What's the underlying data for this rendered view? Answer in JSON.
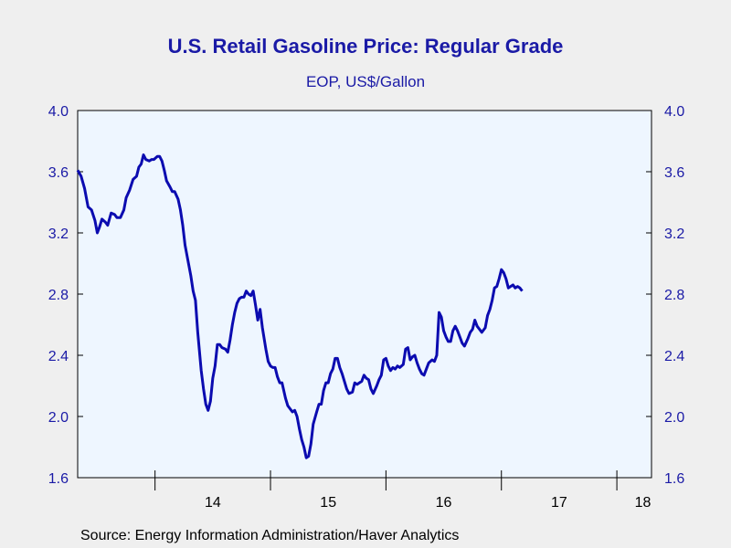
{
  "chart_data": {
    "type": "line",
    "title": "U.S. Retail Gasoline Price: Regular Grade",
    "subtitle": "EOP, US$/Gallon",
    "source": "Source:  Energy Information Administration/Haver Analytics",
    "ylim": [
      1.6,
      4.0
    ],
    "yticks": [
      "1.6",
      "2.0",
      "2.4",
      "2.8",
      "3.2",
      "3.6",
      "4.0"
    ],
    "xlim": [
      2013.33,
      2018.3
    ],
    "xticks": [
      "14",
      "15",
      "16",
      "17",
      "18"
    ],
    "grid": false,
    "colors": {
      "line": "#0b0bb0",
      "plot_bg": "#eef6ff",
      "text": "#1a1aa6"
    },
    "series": [
      {
        "points": [
          [
            2013.33,
            3.61
          ],
          [
            2013.36,
            3.57
          ],
          [
            2013.39,
            3.49
          ],
          [
            2013.42,
            3.37
          ],
          [
            2013.45,
            3.35
          ],
          [
            2013.48,
            3.28
          ],
          [
            2013.5,
            3.2
          ],
          [
            2013.52,
            3.24
          ],
          [
            2013.54,
            3.29
          ],
          [
            2013.57,
            3.27
          ],
          [
            2013.59,
            3.25
          ],
          [
            2013.62,
            3.33
          ],
          [
            2013.65,
            3.32
          ],
          [
            2013.67,
            3.3
          ],
          [
            2013.7,
            3.3
          ],
          [
            2013.73,
            3.35
          ],
          [
            2013.75,
            3.43
          ],
          [
            2013.78,
            3.48
          ],
          [
            2013.81,
            3.55
          ],
          [
            2013.84,
            3.57
          ],
          [
            2013.86,
            3.63
          ],
          [
            2013.88,
            3.65
          ],
          [
            2013.9,
            3.71
          ],
          [
            2013.92,
            3.68
          ],
          [
            2013.95,
            3.67
          ],
          [
            2013.97,
            3.68
          ],
          [
            2013.99,
            3.68
          ],
          [
            2014.02,
            3.7
          ],
          [
            2014.04,
            3.7
          ],
          [
            2014.06,
            3.67
          ],
          [
            2014.08,
            3.61
          ],
          [
            2014.1,
            3.54
          ],
          [
            2014.13,
            3.5
          ],
          [
            2014.15,
            3.47
          ],
          [
            2014.17,
            3.47
          ],
          [
            2014.2,
            3.42
          ],
          [
            2014.22,
            3.35
          ],
          [
            2014.24,
            3.25
          ],
          [
            2014.26,
            3.12
          ],
          [
            2014.29,
            3.0
          ],
          [
            2014.31,
            2.92
          ],
          [
            2014.33,
            2.82
          ],
          [
            2014.35,
            2.76
          ],
          [
            2014.37,
            2.55
          ],
          [
            2014.4,
            2.3
          ],
          [
            2014.42,
            2.18
          ],
          [
            2014.44,
            2.08
          ],
          [
            2014.46,
            2.04
          ],
          [
            2014.48,
            2.1
          ],
          [
            2014.5,
            2.25
          ],
          [
            2014.52,
            2.33
          ],
          [
            2014.54,
            2.47
          ],
          [
            2014.56,
            2.47
          ],
          [
            2014.58,
            2.45
          ],
          [
            2014.61,
            2.44
          ],
          [
            2014.63,
            2.42
          ],
          [
            2014.65,
            2.5
          ],
          [
            2014.67,
            2.6
          ],
          [
            2014.69,
            2.68
          ],
          [
            2014.71,
            2.74
          ],
          [
            2014.73,
            2.77
          ],
          [
            2014.75,
            2.78
          ],
          [
            2014.77,
            2.78
          ],
          [
            2014.79,
            2.82
          ],
          [
            2014.81,
            2.8
          ],
          [
            2014.83,
            2.79
          ],
          [
            2014.85,
            2.82
          ],
          [
            2014.87,
            2.73
          ],
          [
            2014.89,
            2.63
          ],
          [
            2014.91,
            2.7
          ],
          [
            2014.93,
            2.58
          ],
          [
            2014.96,
            2.44
          ],
          [
            2014.98,
            2.36
          ],
          [
            2015.0,
            2.33
          ],
          [
            2015.02,
            2.32
          ],
          [
            2015.04,
            2.32
          ],
          [
            2015.06,
            2.26
          ],
          [
            2015.08,
            2.22
          ],
          [
            2015.1,
            2.22
          ],
          [
            2015.13,
            2.12
          ],
          [
            2015.15,
            2.07
          ],
          [
            2015.17,
            2.05
          ],
          [
            2015.19,
            2.03
          ],
          [
            2015.21,
            2.04
          ],
          [
            2015.23,
            2.0
          ],
          [
            2015.25,
            1.92
          ],
          [
            2015.27,
            1.85
          ],
          [
            2015.29,
            1.8
          ],
          [
            2015.31,
            1.73
          ],
          [
            2015.33,
            1.74
          ],
          [
            2015.35,
            1.82
          ],
          [
            2015.37,
            1.95
          ],
          [
            2015.4,
            2.03
          ],
          [
            2015.42,
            2.08
          ],
          [
            2015.44,
            2.08
          ],
          [
            2015.46,
            2.17
          ],
          [
            2015.48,
            2.22
          ],
          [
            2015.5,
            2.22
          ],
          [
            2015.52,
            2.28
          ],
          [
            2015.54,
            2.31
          ],
          [
            2015.56,
            2.38
          ],
          [
            2015.58,
            2.38
          ],
          [
            2015.6,
            2.32
          ],
          [
            2015.62,
            2.28
          ],
          [
            2015.64,
            2.23
          ],
          [
            2015.66,
            2.18
          ],
          [
            2015.68,
            2.15
          ],
          [
            2015.71,
            2.16
          ],
          [
            2015.73,
            2.22
          ],
          [
            2015.75,
            2.21
          ],
          [
            2015.77,
            2.22
          ],
          [
            2015.79,
            2.23
          ],
          [
            2015.81,
            2.27
          ],
          [
            2015.83,
            2.25
          ],
          [
            2015.85,
            2.24
          ],
          [
            2015.87,
            2.18
          ],
          [
            2015.89,
            2.15
          ],
          [
            2015.92,
            2.2
          ],
          [
            2015.94,
            2.24
          ],
          [
            2015.96,
            2.27
          ],
          [
            2015.98,
            2.37
          ],
          [
            2016.0,
            2.38
          ],
          [
            2016.02,
            2.33
          ],
          [
            2016.04,
            2.3
          ],
          [
            2016.06,
            2.32
          ],
          [
            2016.08,
            2.31
          ],
          [
            2016.1,
            2.33
          ],
          [
            2016.12,
            2.32
          ],
          [
            2016.15,
            2.34
          ],
          [
            2016.17,
            2.44
          ],
          [
            2016.19,
            2.45
          ],
          [
            2016.21,
            2.37
          ],
          [
            2016.23,
            2.39
          ],
          [
            2016.25,
            2.4
          ],
          [
            2016.27,
            2.35
          ],
          [
            2016.29,
            2.31
          ],
          [
            2016.31,
            2.28
          ],
          [
            2016.33,
            2.27
          ],
          [
            2016.35,
            2.31
          ],
          [
            2016.37,
            2.35
          ],
          [
            2016.4,
            2.37
          ],
          [
            2016.42,
            2.36
          ],
          [
            2016.44,
            2.4
          ],
          [
            2016.46,
            2.68
          ],
          [
            2016.48,
            2.65
          ],
          [
            2016.5,
            2.56
          ],
          [
            2016.52,
            2.52
          ],
          [
            2016.54,
            2.49
          ],
          [
            2016.56,
            2.49
          ],
          [
            2016.58,
            2.56
          ],
          [
            2016.6,
            2.59
          ],
          [
            2016.62,
            2.56
          ],
          [
            2016.64,
            2.52
          ],
          [
            2016.66,
            2.48
          ],
          [
            2016.68,
            2.46
          ],
          [
            2016.71,
            2.51
          ],
          [
            2016.73,
            2.55
          ],
          [
            2016.75,
            2.57
          ],
          [
            2016.77,
            2.63
          ],
          [
            2016.79,
            2.59
          ],
          [
            2016.81,
            2.57
          ],
          [
            2016.83,
            2.55
          ],
          [
            2016.86,
            2.58
          ],
          [
            2016.88,
            2.66
          ],
          [
            2016.9,
            2.7
          ],
          [
            2016.92,
            2.76
          ],
          [
            2016.94,
            2.84
          ],
          [
            2016.96,
            2.85
          ],
          [
            2016.98,
            2.9
          ],
          [
            2017.0,
            2.96
          ],
          [
            2017.02,
            2.94
          ],
          [
            2017.04,
            2.9
          ],
          [
            2017.06,
            2.84
          ],
          [
            2017.08,
            2.85
          ],
          [
            2017.1,
            2.86
          ],
          [
            2017.12,
            2.84
          ],
          [
            2017.14,
            2.85
          ],
          [
            2017.16,
            2.84
          ],
          [
            2017.18,
            2.82
          ]
        ]
      }
    ]
  }
}
